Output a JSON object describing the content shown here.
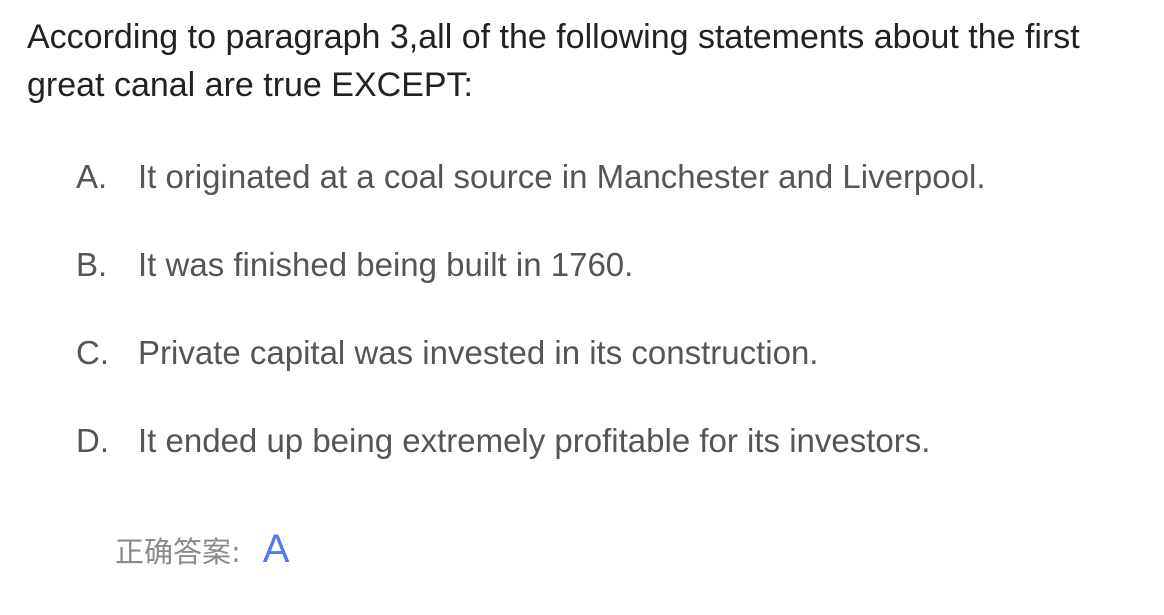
{
  "question": {
    "text": "According to paragraph 3,all of the following statements about the first great canal are true EXCEPT:"
  },
  "options": [
    {
      "letter": "A.",
      "text": "It originated at a coal source in Manchester and Liverpool."
    },
    {
      "letter": "B.",
      "text": "It was finished being built in 1760."
    },
    {
      "letter": "C.",
      "text": "Private capital was invested in its construction."
    },
    {
      "letter": "D.",
      "text": "It ended up being extremely profitable for its investors."
    }
  ],
  "answer": {
    "label": "正确答案:",
    "value": "A"
  },
  "colors": {
    "question_text": "#222222",
    "option_text": "#555555",
    "answer_label": "#8a8a8a",
    "answer_value": "#4a7ef0"
  }
}
